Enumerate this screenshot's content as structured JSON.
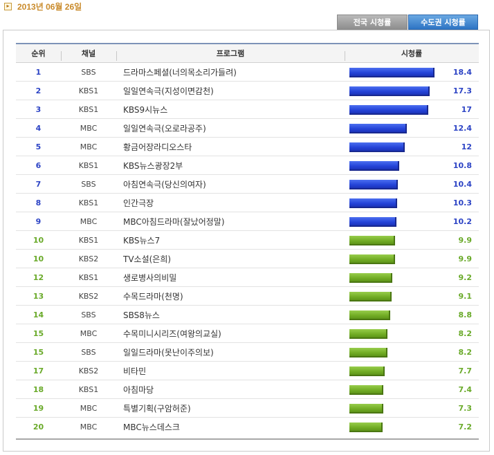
{
  "date": "2013년 06월 26일",
  "tabs": {
    "national": "전국 시청률",
    "capital": "수도권 시청률"
  },
  "headers": {
    "rank": "순위",
    "channel": "채널",
    "program": "프로그램",
    "rating": "시청률"
  },
  "rating_max": 18.4,
  "colors": {
    "top": "#2443d8",
    "rest": "#72ad25"
  },
  "rows": [
    {
      "rank": "1",
      "channel": "SBS",
      "program": "드라마스페셜(너의목소리가들려)",
      "rating": "18.4",
      "value": 18.4,
      "tier": "top"
    },
    {
      "rank": "2",
      "channel": "KBS1",
      "program": "일일연속극(지성이면감천)",
      "rating": "17.3",
      "value": 17.3,
      "tier": "top"
    },
    {
      "rank": "3",
      "channel": "KBS1",
      "program": "KBS9시뉴스",
      "rating": "17",
      "value": 17.0,
      "tier": "top"
    },
    {
      "rank": "4",
      "channel": "MBC",
      "program": "일일연속극(오로라공주)",
      "rating": "12.4",
      "value": 12.4,
      "tier": "top"
    },
    {
      "rank": "5",
      "channel": "MBC",
      "program": "황금어장라디오스타",
      "rating": "12",
      "value": 12.0,
      "tier": "top"
    },
    {
      "rank": "6",
      "channel": "KBS1",
      "program": "KBS뉴스광장2부",
      "rating": "10.8",
      "value": 10.8,
      "tier": "top"
    },
    {
      "rank": "7",
      "channel": "SBS",
      "program": "아침연속극(당신의여자)",
      "rating": "10.4",
      "value": 10.4,
      "tier": "top"
    },
    {
      "rank": "8",
      "channel": "KBS1",
      "program": "인간극장",
      "rating": "10.3",
      "value": 10.3,
      "tier": "top"
    },
    {
      "rank": "9",
      "channel": "MBC",
      "program": "MBC아침드라마(잘났어정말)",
      "rating": "10.2",
      "value": 10.2,
      "tier": "top"
    },
    {
      "rank": "10",
      "channel": "KBS1",
      "program": "KBS뉴스7",
      "rating": "9.9",
      "value": 9.9,
      "tier": "rest"
    },
    {
      "rank": "10",
      "channel": "KBS2",
      "program": "TV소설(은희)",
      "rating": "9.9",
      "value": 9.9,
      "tier": "rest"
    },
    {
      "rank": "12",
      "channel": "KBS1",
      "program": "생로병사의비밀",
      "rating": "9.2",
      "value": 9.2,
      "tier": "rest"
    },
    {
      "rank": "13",
      "channel": "KBS2",
      "program": "수목드라마(천명)",
      "rating": "9.1",
      "value": 9.1,
      "tier": "rest"
    },
    {
      "rank": "14",
      "channel": "SBS",
      "program": "SBS8뉴스",
      "rating": "8.8",
      "value": 8.8,
      "tier": "rest"
    },
    {
      "rank": "15",
      "channel": "MBC",
      "program": "수목미니시리즈(여왕의교실)",
      "rating": "8.2",
      "value": 8.2,
      "tier": "rest"
    },
    {
      "rank": "15",
      "channel": "SBS",
      "program": "일일드라마(못난이주의보)",
      "rating": "8.2",
      "value": 8.2,
      "tier": "rest"
    },
    {
      "rank": "17",
      "channel": "KBS2",
      "program": "비타민",
      "rating": "7.7",
      "value": 7.7,
      "tier": "rest"
    },
    {
      "rank": "18",
      "channel": "KBS1",
      "program": "아침마당",
      "rating": "7.4",
      "value": 7.4,
      "tier": "rest"
    },
    {
      "rank": "19",
      "channel": "MBC",
      "program": "특별기획(구암허준)",
      "rating": "7.3",
      "value": 7.3,
      "tier": "rest"
    },
    {
      "rank": "20",
      "channel": "MBC",
      "program": "MBC뉴스데스크",
      "rating": "7.2",
      "value": 7.2,
      "tier": "rest"
    }
  ]
}
